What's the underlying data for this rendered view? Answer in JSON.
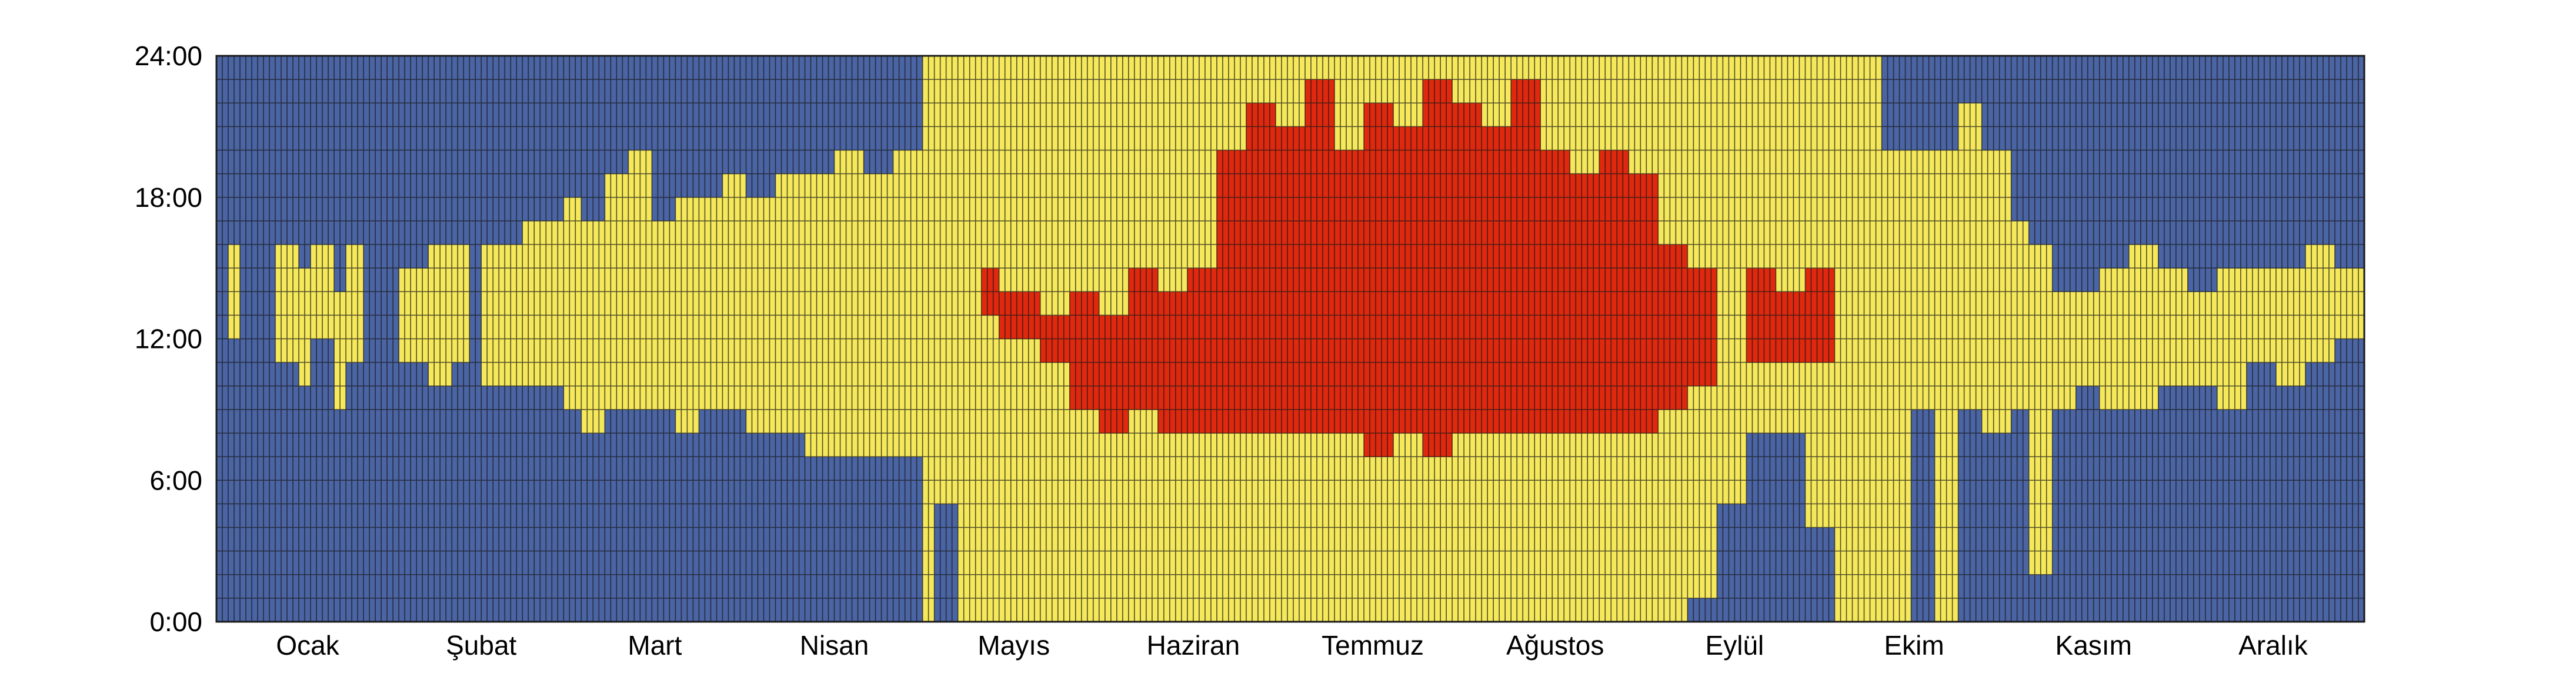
{
  "chart_data": {
    "type": "heatmap",
    "title": "",
    "xlabel": "",
    "ylabel": "",
    "x_range": [
      1,
      365
    ],
    "y_range": [
      0,
      24
    ],
    "cell_hours": 1,
    "months": [
      "Ocak",
      "Şubat",
      "Mart",
      "Nisan",
      "Mayıs",
      "Haziran",
      "Temmuz",
      "Ağustos",
      "Eylül",
      "Ekim",
      "Kasım",
      "Aralık"
    ],
    "month_days": [
      31,
      28,
      31,
      30,
      31,
      30,
      31,
      31,
      30,
      31,
      30,
      31
    ],
    "y_ticks": [
      "0:00",
      "6:00",
      "12:00",
      "18:00",
      "24:00"
    ],
    "y_tick_values": [
      0,
      6,
      12,
      18,
      24
    ],
    "categories": [
      "cold",
      "comfortable",
      "hot"
    ],
    "colors": {
      "cold": "#4a64a4",
      "comfortable": "#f5e85a",
      "hot": "#e0280e",
      "grid": "#1a1a1a"
    },
    "bands_note": "Each entry: [start_day, end_day, warm_start_hour, warm_end_hour, hot_start_hour, hot_end_hour]; -1 means none. Warm = comfortable (yellow), hot = red, elsewhere cold (blue).",
    "bands": [
      [
        1,
        2,
        -1,
        -1,
        -1,
        -1
      ],
      [
        3,
        4,
        12,
        16,
        -1,
        -1
      ],
      [
        5,
        10,
        -1,
        -1,
        -1,
        -1
      ],
      [
        11,
        14,
        11,
        16,
        -1,
        -1
      ],
      [
        15,
        16,
        10,
        15,
        -1,
        -1
      ],
      [
        17,
        20,
        12,
        16,
        -1,
        -1
      ],
      [
        21,
        22,
        9,
        14,
        -1,
        -1
      ],
      [
        23,
        25,
        11,
        16,
        -1,
        -1
      ],
      [
        26,
        31,
        -1,
        -1,
        -1,
        -1
      ],
      [
        32,
        36,
        11,
        15,
        -1,
        -1
      ],
      [
        37,
        40,
        10,
        16,
        -1,
        -1
      ],
      [
        41,
        43,
        11,
        16,
        -1,
        -1
      ],
      [
        44,
        45,
        -1,
        -1,
        -1,
        -1
      ],
      [
        46,
        52,
        10,
        16,
        -1,
        -1
      ],
      [
        53,
        59,
        10,
        17,
        -1,
        -1
      ],
      [
        60,
        62,
        9,
        18,
        -1,
        -1
      ],
      [
        63,
        66,
        8,
        17,
        -1,
        -1
      ],
      [
        67,
        70,
        9,
        19,
        -1,
        -1
      ],
      [
        71,
        74,
        9,
        20,
        -1,
        -1
      ],
      [
        75,
        78,
        9,
        17,
        -1,
        -1
      ],
      [
        79,
        82,
        8,
        18,
        -1,
        -1
      ],
      [
        83,
        86,
        9,
        18,
        -1,
        -1
      ],
      [
        87,
        90,
        9,
        19,
        -1,
        -1
      ],
      [
        91,
        95,
        8,
        18,
        -1,
        -1
      ],
      [
        96,
        100,
        8,
        19,
        -1,
        -1
      ],
      [
        101,
        105,
        7,
        19,
        -1,
        -1
      ],
      [
        106,
        110,
        7,
        20,
        -1,
        -1
      ],
      [
        111,
        115,
        7,
        19,
        -1,
        -1
      ],
      [
        116,
        120,
        7,
        20,
        -1,
        -1
      ],
      [
        121,
        122,
        0,
        24,
        -1,
        -1
      ],
      [
        123,
        126,
        5,
        24,
        -1,
        -1
      ],
      [
        127,
        130,
        0,
        24,
        -1,
        -1
      ],
      [
        131,
        133,
        0,
        24,
        13,
        15
      ],
      [
        134,
        140,
        0,
        24,
        12,
        14
      ],
      [
        141,
        145,
        0,
        24,
        11,
        13
      ],
      [
        146,
        150,
        0,
        24,
        9,
        14
      ],
      [
        151,
        155,
        0,
        24,
        8,
        13
      ],
      [
        156,
        160,
        0,
        24,
        9,
        15
      ],
      [
        161,
        165,
        0,
        24,
        8,
        14
      ],
      [
        166,
        170,
        0,
        24,
        8,
        15
      ],
      [
        171,
        175,
        0,
        24,
        8,
        20
      ],
      [
        176,
        180,
        0,
        24,
        8,
        22
      ],
      [
        181,
        185,
        0,
        24,
        8,
        21
      ],
      [
        186,
        190,
        0,
        24,
        8,
        23
      ],
      [
        191,
        195,
        0,
        24,
        8,
        20
      ],
      [
        196,
        200,
        0,
        24,
        7,
        22
      ],
      [
        201,
        205,
        0,
        24,
        8,
        21
      ],
      [
        206,
        210,
        0,
        24,
        7,
        23
      ],
      [
        211,
        215,
        0,
        24,
        8,
        22
      ],
      [
        216,
        220,
        0,
        24,
        8,
        21
      ],
      [
        221,
        225,
        0,
        24,
        8,
        23
      ],
      [
        226,
        230,
        0,
        24,
        8,
        20
      ],
      [
        231,
        235,
        0,
        24,
        8,
        19
      ],
      [
        236,
        240,
        0,
        24,
        8,
        20
      ],
      [
        241,
        245,
        0,
        24,
        8,
        19
      ],
      [
        246,
        250,
        0,
        24,
        9,
        16
      ],
      [
        251,
        255,
        1,
        24,
        10,
        15
      ],
      [
        256,
        260,
        5,
        24,
        -1,
        -1
      ],
      [
        261,
        265,
        8,
        24,
        11,
        15
      ],
      [
        266,
        270,
        8,
        24,
        11,
        14
      ],
      [
        271,
        275,
        4,
        24,
        11,
        15
      ],
      [
        276,
        280,
        0,
        24,
        -1,
        -1
      ],
      [
        281,
        283,
        0,
        24,
        -1,
        -1
      ],
      [
        284,
        288,
        0,
        20,
        -1,
        -1
      ],
      [
        289,
        292,
        9,
        20,
        -1,
        -1
      ],
      [
        293,
        296,
        0,
        20,
        -1,
        -1
      ],
      [
        297,
        300,
        9,
        22,
        -1,
        -1
      ],
      [
        301,
        305,
        8,
        20,
        -1,
        -1
      ],
      [
        306,
        308,
        9,
        17,
        -1,
        -1
      ],
      [
        309,
        312,
        2,
        16,
        -1,
        -1
      ],
      [
        313,
        316,
        9,
        14,
        -1,
        -1
      ],
      [
        317,
        320,
        10,
        14,
        -1,
        -1
      ],
      [
        321,
        325,
        9,
        15,
        -1,
        -1
      ],
      [
        326,
        330,
        9,
        16,
        -1,
        -1
      ],
      [
        331,
        335,
        10,
        15,
        -1,
        -1
      ],
      [
        336,
        340,
        10,
        14,
        -1,
        -1
      ],
      [
        341,
        345,
        9,
        15,
        -1,
        -1
      ],
      [
        346,
        350,
        11,
        15,
        -1,
        -1
      ],
      [
        351,
        355,
        10,
        15,
        -1,
        -1
      ],
      [
        356,
        360,
        11,
        16,
        -1,
        -1
      ],
      [
        361,
        365,
        12,
        15,
        -1,
        -1
      ]
    ]
  }
}
